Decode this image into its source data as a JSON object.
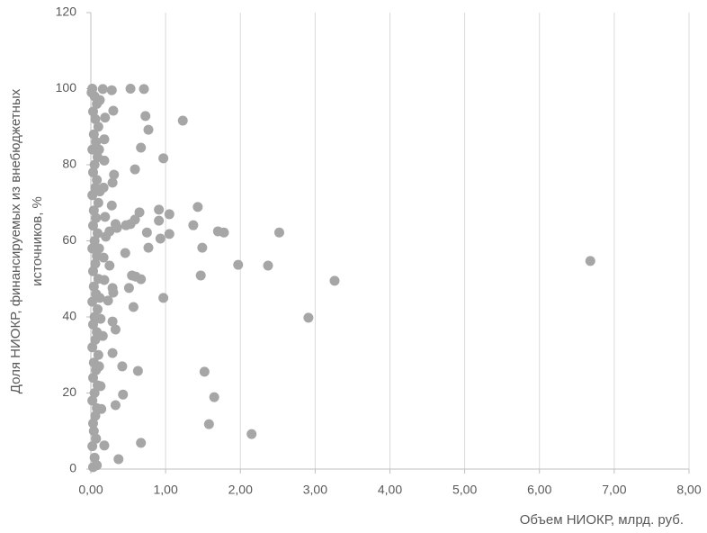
{
  "chart_data": {
    "type": "scatter",
    "x_label": "Объем НИОКР, млрд. руб.",
    "y_label": [
      "Доля НИОКР, финансируемых из внебюджетных",
      "источников, %"
    ],
    "color": "#a6a6a6",
    "x": [
      6.68,
      3.26,
      2.91,
      2.52,
      2.37,
      1.97,
      2.15,
      1.78,
      1.7,
      1.65,
      1.58,
      1.52,
      1.49,
      1.47,
      1.43,
      1.37,
      1.23,
      1.05,
      1.05,
      0.97,
      0.93,
      0.97,
      0.91,
      0.91,
      0.75,
      0.77,
      0.77,
      0.73,
      0.71,
      0.53,
      0.67,
      0.59,
      0.65,
      0.59,
      0.53,
      0.6,
      0.67,
      0.55,
      0.51,
      0.57,
      0.63,
      0.67,
      0.47,
      0.33,
      0.25,
      0.35,
      0.3,
      0.28,
      0.31,
      0.29,
      0.28,
      0.25,
      0.29,
      0.3,
      0.23,
      0.29,
      0.33,
      0.29,
      0.42,
      0.43,
      0.33,
      0.37,
      0.46,
      0.16,
      0.19,
      0.18,
      0.18,
      0.17,
      0.19,
      0.2,
      0.17,
      0.18,
      0.13,
      0.16,
      0.13,
      0.14,
      0.18,
      0.02,
      0.05,
      0.08,
      0.03,
      0.06,
      0.1,
      0.04,
      0.07,
      0.02,
      0.09,
      0.05,
      0.03,
      0.08,
      0.06,
      0.02,
      0.1,
      0.04,
      0.07,
      0.03,
      0.09,
      0.05,
      0.02,
      0.08,
      0.06,
      0.03,
      0.1,
      0.04,
      0.07,
      0.02,
      0.09,
      0.05,
      0.03,
      0.08,
      0.06,
      0.02,
      0.1,
      0.04,
      0.07,
      0.03,
      0.09,
      0.05,
      0.02,
      0.08,
      0.06,
      0.03,
      0.04,
      0.07,
      0.02,
      0.05,
      0.08,
      0.03,
      0.01,
      0.12,
      0.11,
      0.12,
      0.11,
      0.12,
      0.11
    ],
    "values": [
      54.7,
      49.5,
      39.8,
      62.2,
      53.5,
      53.7,
      9.2,
      62.2,
      62.5,
      18.9,
      11.8,
      25.6,
      58.2,
      50.9,
      68.9,
      64.1,
      91.6,
      67.0,
      61.8,
      81.7,
      60.6,
      45.0,
      68.2,
      65.3,
      62.2,
      58.2,
      89.2,
      92.8,
      99.9,
      100,
      84.5,
      78.8,
      67.5,
      65.6,
      64.4,
      50.6,
      49.9,
      50.9,
      47.6,
      42.6,
      25.8,
      6.9,
      64.1,
      64.4,
      62.5,
      63.4,
      94.2,
      99.6,
      77.4,
      75.3,
      69.3,
      53.5,
      47.6,
      46.4,
      44.3,
      38.8,
      36.7,
      30.5,
      27.0,
      19.6,
      16.8,
      2.6,
      56.8,
      99.9,
      92.4,
      86.7,
      81.1,
      74.0,
      66.3,
      61.1,
      55.6,
      49.7,
      39.5,
      35.0,
      21.8,
      15.8,
      6.2,
      100,
      98,
      96,
      94,
      92,
      90,
      88,
      86,
      84,
      82,
      80,
      78,
      76,
      74,
      72,
      70,
      68,
      66,
      64,
      62,
      60,
      58,
      56,
      54,
      52,
      50,
      48,
      46,
      44,
      42,
      40,
      38,
      36,
      34,
      32,
      30,
      28,
      26,
      24,
      22,
      20,
      18,
      16,
      14,
      12,
      10,
      8,
      6,
      3,
      1,
      0.5,
      99,
      97,
      84,
      73,
      58,
      45,
      27
    ],
    "xlim": [
      0,
      8
    ],
    "xticks": [
      {
        "value": 0,
        "label": "0,00"
      },
      {
        "value": 1,
        "label": "1,00"
      },
      {
        "value": 2,
        "label": "2,00"
      },
      {
        "value": 3,
        "label": "3,00"
      },
      {
        "value": 4,
        "label": "4,00"
      },
      {
        "value": 5,
        "label": "5,00"
      },
      {
        "value": 6,
        "label": "6,00"
      },
      {
        "value": 7,
        "label": "7,00"
      },
      {
        "value": 8,
        "label": "8,00"
      }
    ],
    "ylim": [
      0,
      120
    ],
    "yticks": [
      0,
      20,
      40,
      60,
      80,
      100,
      120
    ],
    "grid": "x"
  }
}
